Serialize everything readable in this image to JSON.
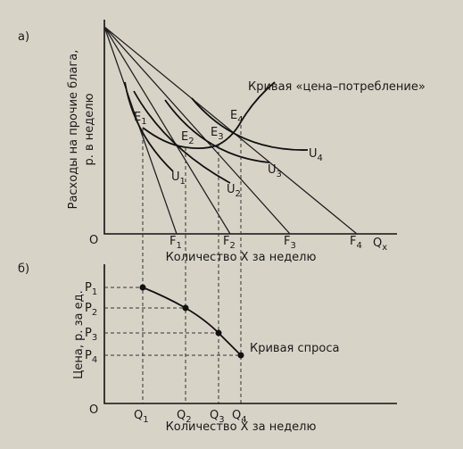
{
  "panel_a": {
    "tag": "а)",
    "y_axis_label": [
      "Расходы на прочие блага,",
      "р. в неделю"
    ],
    "x_axis_label": "Количество X за неделю",
    "origin": "O",
    "x_symbol": {
      "base": "Q",
      "sub": "x"
    },
    "budget_ends": [
      {
        "base": "F",
        "sub": "1"
      },
      {
        "base": "F",
        "sub": "2"
      },
      {
        "base": "F",
        "sub": "3"
      },
      {
        "base": "F",
        "sub": "4"
      }
    ],
    "equilibria": [
      {
        "base": "E",
        "sub": "1"
      },
      {
        "base": "E",
        "sub": "2"
      },
      {
        "base": "E",
        "sub": "3"
      },
      {
        "base": "E",
        "sub": "4"
      }
    ],
    "indifference": [
      {
        "base": "U",
        "sub": "1"
      },
      {
        "base": "U",
        "sub": "2"
      },
      {
        "base": "U",
        "sub": "3"
      },
      {
        "base": "U",
        "sub": "4"
      }
    ],
    "curve_label": "Кривая «цена–потребление»"
  },
  "panel_b": {
    "tag": "б)",
    "y_axis_label": "Цена, р. за ед.",
    "x_axis_label": "Количество X за неделю",
    "origin": "O",
    "prices": [
      {
        "base": "P",
        "sub": "1"
      },
      {
        "base": "P",
        "sub": "2"
      },
      {
        "base": "P",
        "sub": "3"
      },
      {
        "base": "P",
        "sub": "4"
      }
    ],
    "quantities": [
      {
        "base": "Q",
        "sub": "1"
      },
      {
        "base": "Q",
        "sub": "2"
      },
      {
        "base": "Q",
        "sub": "3"
      },
      {
        "base": "Q",
        "sub": "4"
      }
    ],
    "curve_label": "Кривая спроса"
  }
}
